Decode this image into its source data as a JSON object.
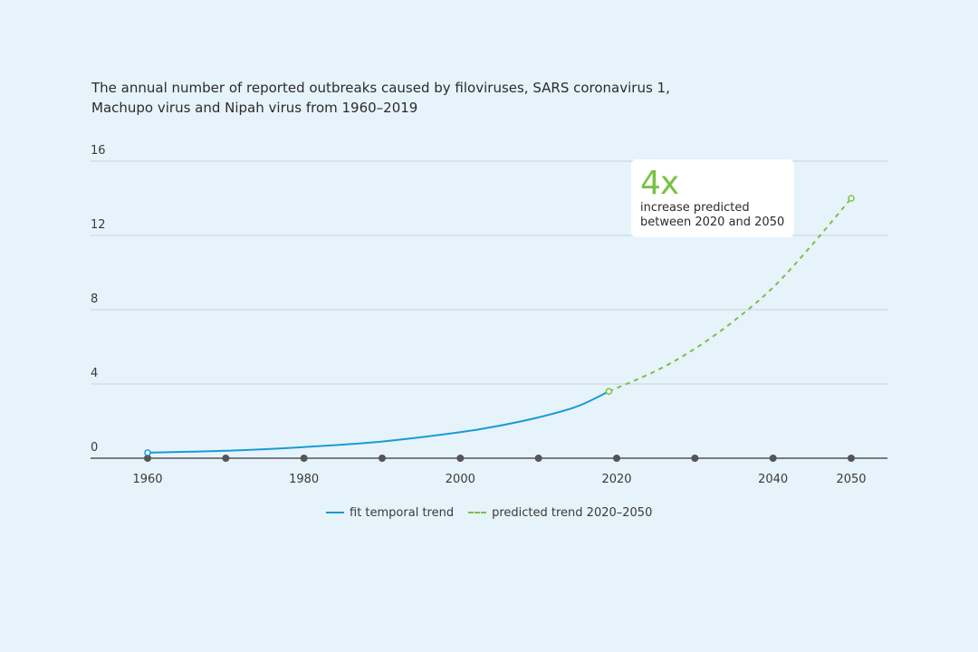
{
  "title_lines": [
    "The annual number of reported outbreaks caused by filoviruses, SARS coronavirus 1,",
    "Machupo virus and Nipah virus from 1960–2019"
  ],
  "callout": {
    "big": "4x",
    "line1": "increase predicted",
    "line2": "between 2020 and 2050"
  },
  "legend": {
    "fit": "fit temporal trend",
    "predicted": "predicted trend 2020–2050"
  },
  "colors": {
    "fit": "#1a9ad6",
    "predicted": "#7ac143",
    "grid": "#c2d3de",
    "axis": "#555555",
    "dot": "#555555"
  },
  "chart_data": {
    "type": "line",
    "xlim": [
      1960,
      2050
    ],
    "ylim": [
      0,
      16
    ],
    "y_ticks": [
      0,
      4,
      8,
      12,
      16
    ],
    "x_ticks": [
      1960,
      1980,
      2000,
      2020,
      2040,
      2050
    ],
    "axis_dots": [
      1960,
      1970,
      1980,
      1990,
      2000,
      2010,
      2020,
      2030,
      2040,
      2050
    ],
    "series": [
      {
        "name": "fit temporal trend",
        "style": "solid",
        "x": [
          1960,
          1970,
          1980,
          1990,
          2000,
          2005,
          2010,
          2015,
          2019
        ],
        "y": [
          0.3,
          0.4,
          0.6,
          0.9,
          1.4,
          1.75,
          2.2,
          2.8,
          3.6
        ]
      },
      {
        "name": "predicted trend 2020–2050",
        "style": "dashed",
        "x": [
          2019,
          2025,
          2030,
          2035,
          2040,
          2045,
          2050
        ],
        "y": [
          3.6,
          4.7,
          5.9,
          7.4,
          9.2,
          11.5,
          14.0
        ]
      }
    ]
  }
}
